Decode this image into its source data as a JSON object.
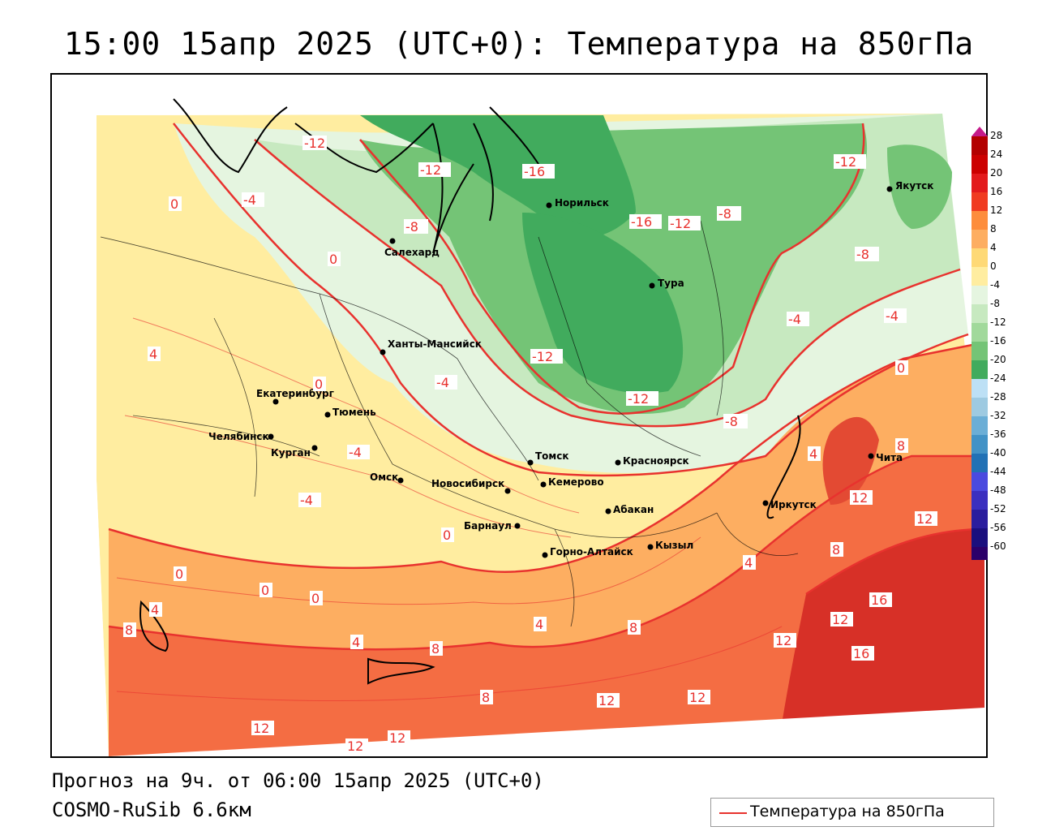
{
  "title": "15:00 15апр 2025 (UTC+0): Температура на 850гПа",
  "footer": {
    "forecast": "Прогноз на 9ч. от 06:00 15апр 2025 (UTC+0)",
    "model": "COSMO-RuSib 6.6км"
  },
  "legend": {
    "line_label": "Температура на 850гПа",
    "line_color": "#e8322e"
  },
  "colorbar": {
    "ticks": [
      "28",
      "24",
      "20",
      "16",
      "12",
      "8",
      "4",
      "0",
      "-4",
      "-8",
      "-12",
      "-16",
      "-20",
      "-24",
      "-28",
      "-32",
      "-36",
      "-40",
      "-44",
      "-48",
      "-52",
      "-56",
      "-60"
    ],
    "colors": [
      "#b30000",
      "#cc0000",
      "#e31a1c",
      "#f03b20",
      "#fd8d3c",
      "#fdae61",
      "#fed976",
      "#ffeda0",
      "#e5f5e0",
      "#c7e9c0",
      "#a1d99b",
      "#74c476",
      "#41ab5d",
      "#bde0f5",
      "#9ecae1",
      "#6baed6",
      "#4292c6",
      "#2171b5",
      "#4a4adf",
      "#3b2fbf",
      "#2a1d9e",
      "#1a0f7e",
      "#2b006a"
    ]
  },
  "cities": [
    {
      "name": "Якутск"
    },
    {
      "name": "Норильск"
    },
    {
      "name": "Салехард"
    },
    {
      "name": "Тура"
    },
    {
      "name": "Ханты-Мансийск"
    },
    {
      "name": "Екатеринбург"
    },
    {
      "name": "Тюмень"
    },
    {
      "name": "Челябинск"
    },
    {
      "name": "Курган"
    },
    {
      "name": "Омск"
    },
    {
      "name": "Новосибирск"
    },
    {
      "name": "Томск"
    },
    {
      "name": "Кемерово"
    },
    {
      "name": "Красноярск"
    },
    {
      "name": "Абакан"
    },
    {
      "name": "Барнаул"
    },
    {
      "name": "Горно-Алтайск"
    },
    {
      "name": "Кызыл"
    },
    {
      "name": "Иркутск"
    },
    {
      "name": "Чита"
    }
  ],
  "isotherm_labels": [
    "-12",
    "-12",
    "-16",
    "-4",
    "0",
    "-8",
    "-16",
    "-12",
    "-8",
    "-12",
    "-8",
    "-4",
    "-4",
    "0",
    "-12",
    "-12",
    "-8",
    "-4",
    "0",
    "4",
    "4",
    "8",
    "-4",
    "-4",
    "0",
    "12",
    "12",
    "0",
    "8",
    "4",
    "0",
    "0",
    "0",
    "4",
    "8",
    "4",
    "8",
    "4",
    "8",
    "12",
    "12",
    "16",
    "16",
    "8",
    "12",
    "12",
    "12",
    "12",
    "12"
  ]
}
